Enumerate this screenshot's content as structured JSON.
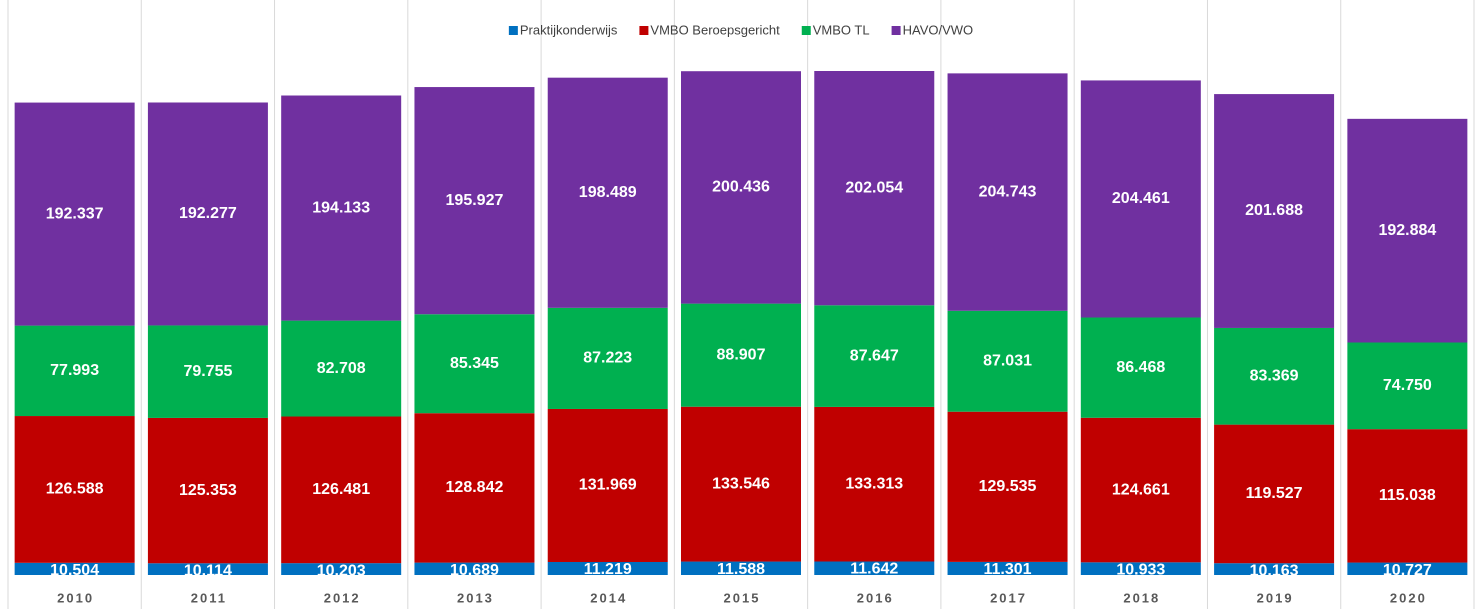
{
  "chart_data": {
    "type": "stacked-bar",
    "categories": [
      "2010",
      "2011",
      "2012",
      "2013",
      "2014",
      "2015",
      "2016",
      "2017",
      "2018",
      "2019",
      "2020"
    ],
    "series": [
      {
        "name": "Praktijkonderwijs",
        "color": "#0070C0",
        "values": [
          10504,
          10114,
          10203,
          10689,
          11219,
          11588,
          11642,
          11301,
          10933,
          10163,
          10727
        ],
        "value_labels": [
          "10.504",
          "10.114",
          "10.203",
          "10.689",
          "11.219",
          "11.588",
          "11.642",
          "11.301",
          "10.933",
          "10.163",
          "10.727"
        ]
      },
      {
        "name": "VMBO Beroepsgericht",
        "color": "#C00000",
        "values": [
          126588,
          125353,
          126481,
          128842,
          131969,
          133546,
          133313,
          129535,
          124661,
          119527,
          115038
        ],
        "value_labels": [
          "126.588",
          "125.353",
          "126.481",
          "128.842",
          "131.969",
          "133.546",
          "133.313",
          "129.535",
          "124.661",
          "119.527",
          "115.038"
        ]
      },
      {
        "name": "VMBO TL",
        "color": "#00B050",
        "values": [
          77993,
          79755,
          82708,
          85345,
          87223,
          88907,
          87647,
          87031,
          86468,
          83369,
          74750
        ],
        "value_labels": [
          "77.993",
          "79.755",
          "82.708",
          "85.345",
          "87.223",
          "88.907",
          "87.647",
          "87.031",
          "86.468",
          "83.369",
          "74.750"
        ]
      },
      {
        "name": "HAVO/VWO",
        "color": "#7030A0",
        "values": [
          192337,
          192277,
          194133,
          195927,
          198489,
          200436,
          202054,
          204743,
          204461,
          201688,
          192884
        ],
        "value_labels": [
          "192.337",
          "192.277",
          "194.133",
          "195.927",
          "198.489",
          "200.436",
          "202.054",
          "204.743",
          "204.461",
          "201.688",
          "192.884"
        ]
      }
    ],
    "legend": "top"
  }
}
